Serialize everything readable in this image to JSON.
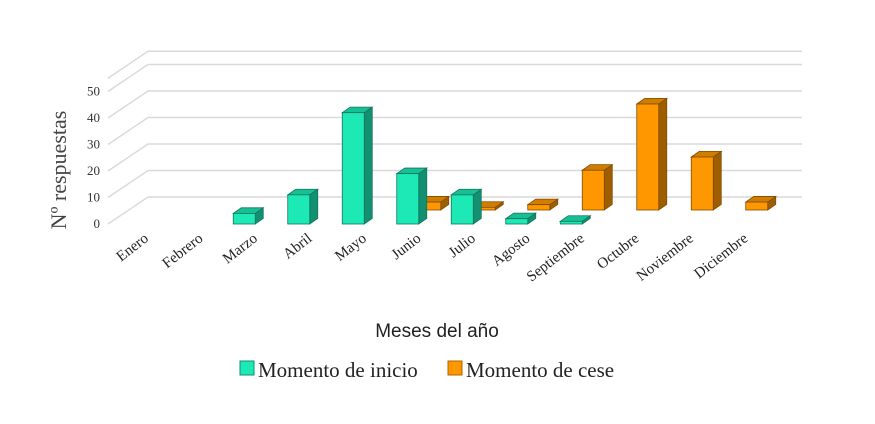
{
  "chart_data": {
    "type": "bar",
    "style": "3d-clustered-depth",
    "categories": [
      "Enero",
      "Febrero",
      "Marzo",
      "Abril",
      "Mayo",
      "Junio",
      "Julio",
      "Agosto",
      "Septiembre",
      "Octubre",
      "Noviembre",
      "Diciembre"
    ],
    "series": [
      {
        "name": "Momento de inicio",
        "color": "#1de9b6",
        "values": [
          0,
          0,
          4,
          11,
          42,
          19,
          11,
          2,
          1,
          0,
          0,
          0
        ]
      },
      {
        "name": "Momento de cese",
        "color": "#ff9800",
        "values": [
          0,
          0,
          0,
          0,
          0,
          3,
          1,
          2,
          15,
          40,
          20,
          3
        ]
      }
    ],
    "ylabel": "Nº respuestas",
    "xlabel": "Meses del año",
    "ylim": [
      0,
      50
    ],
    "yticks": [
      0,
      10,
      20,
      30,
      40,
      50
    ],
    "grid": true,
    "legend": "bottom"
  }
}
